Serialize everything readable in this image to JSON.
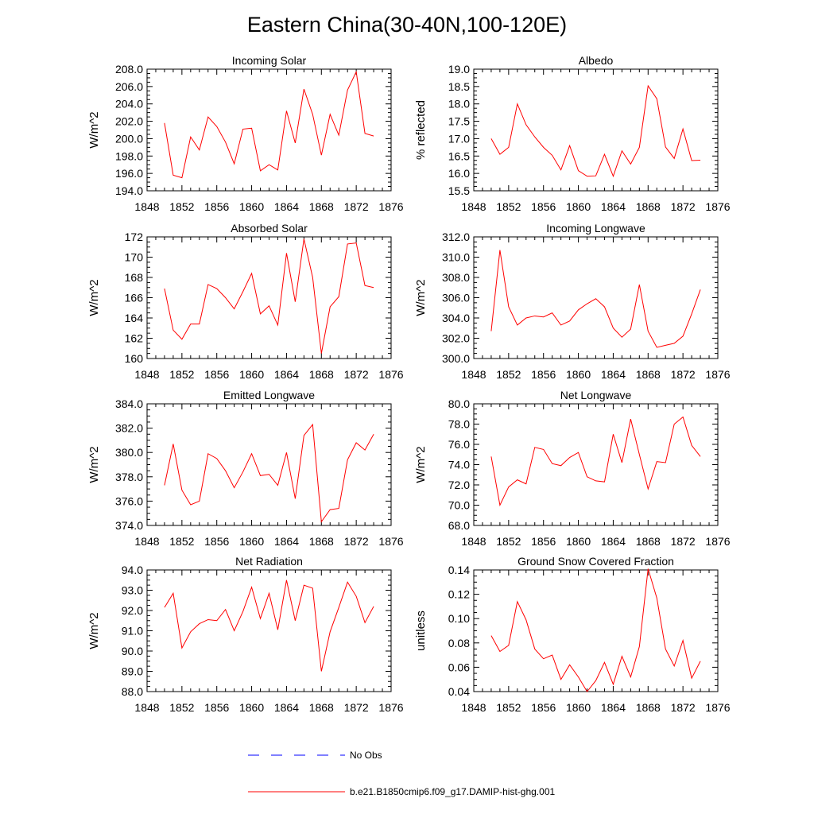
{
  "title": "Eastern China(30-40N,100-120E)",
  "years": [
    1850,
    1851,
    1852,
    1853,
    1854,
    1855,
    1856,
    1857,
    1858,
    1859,
    1860,
    1861,
    1862,
    1863,
    1864,
    1865,
    1866,
    1867,
    1868,
    1869,
    1870,
    1871,
    1872,
    1873,
    1874
  ],
  "x_axis": {
    "min": 1848,
    "max": 1876,
    "major": 4,
    "minor": 1,
    "tick_labels": [
      "1848",
      "1852",
      "1856",
      "1860",
      "1864",
      "1868",
      "1872",
      "1876"
    ]
  },
  "colors": {
    "model": "#ff0000",
    "obs": "#0000ff",
    "axis": "#000000"
  },
  "legend": [
    {
      "label": "No Obs",
      "style": "dashed",
      "color": "#0000ff"
    },
    {
      "label": "b.e21.B1850cmip6.f09_g17.DAMIP-hist-ghg.001",
      "style": "solid",
      "color": "#ff0000"
    }
  ],
  "chart_data": [
    {
      "type": "line",
      "title": "Incoming Solar",
      "ylabel": "W/m^2",
      "ylim": [
        194,
        208
      ],
      "y_major": 2,
      "y_minor": 0.5,
      "tick_labels": [
        "194.0",
        "196.0",
        "198.0",
        "200.0",
        "202.0",
        "204.0",
        "206.0",
        "208.0"
      ],
      "series": [
        {
          "values": [
            201.8,
            195.8,
            195.5,
            200.2,
            198.7,
            202.5,
            201.4,
            199.6,
            197.1,
            201.1,
            201.2,
            196.3,
            197.0,
            196.4,
            203.2,
            199.5,
            205.7,
            202.8,
            198.1,
            202.8,
            200.4,
            205.6,
            207.7,
            200.6,
            200.3
          ]
        }
      ]
    },
    {
      "type": "line",
      "title": "Albedo",
      "ylabel": "% reflected",
      "ylim": [
        15.5,
        19.0
      ],
      "y_major": 0.5,
      "y_minor": 0.125,
      "tick_labels": [
        "15.5",
        "16.0",
        "16.5",
        "17.0",
        "17.5",
        "18.0",
        "18.5",
        "19.0"
      ],
      "series": [
        {
          "values": [
            17.0,
            16.55,
            16.75,
            18.0,
            17.4,
            17.05,
            16.75,
            16.52,
            16.1,
            16.8,
            16.08,
            15.92,
            15.93,
            16.55,
            15.92,
            16.65,
            16.27,
            16.75,
            18.52,
            18.15,
            16.76,
            16.43,
            17.28,
            16.37,
            16.38
          ]
        }
      ]
    },
    {
      "type": "line",
      "title": "Absorbed Solar",
      "ylabel": "W/m^2",
      "ylim": [
        160,
        172
      ],
      "y_major": 2,
      "y_minor": 0.5,
      "tick_labels": [
        "160",
        "162",
        "164",
        "166",
        "168",
        "170",
        "172"
      ],
      "series": [
        {
          "values": [
            166.9,
            162.8,
            161.9,
            163.4,
            163.4,
            167.3,
            166.9,
            166.0,
            164.9,
            166.6,
            168.4,
            164.4,
            165.2,
            163.3,
            170.4,
            165.6,
            171.8,
            168.0,
            160.5,
            165.1,
            166.1,
            171.3,
            171.4,
            167.2,
            167.0
          ]
        }
      ]
    },
    {
      "type": "line",
      "title": "Incoming Longwave",
      "ylabel": "W/m^2",
      "ylim": [
        300,
        312
      ],
      "y_major": 2,
      "y_minor": 0.5,
      "tick_labels": [
        "300.0",
        "302.0",
        "304.0",
        "306.0",
        "308.0",
        "310.0",
        "312.0"
      ],
      "series": [
        {
          "values": [
            302.7,
            310.7,
            305.1,
            303.3,
            304.0,
            304.2,
            304.1,
            304.5,
            303.3,
            303.7,
            304.8,
            305.4,
            305.9,
            305.1,
            303.0,
            302.1,
            302.9,
            307.3,
            302.7,
            301.1,
            301.3,
            301.5,
            302.2,
            304.4,
            306.8
          ]
        }
      ]
    },
    {
      "type": "line",
      "title": "Emitted Longwave",
      "ylabel": "W/m^2",
      "ylim": [
        374,
        384
      ],
      "y_major": 2,
      "y_minor": 0.5,
      "tick_labels": [
        "374.0",
        "376.0",
        "378.0",
        "380.0",
        "382.0",
        "384.0"
      ],
      "series": [
        {
          "values": [
            377.3,
            380.7,
            376.9,
            375.7,
            376.0,
            379.9,
            379.5,
            378.5,
            377.1,
            378.4,
            379.9,
            378.1,
            378.2,
            377.3,
            380.0,
            376.2,
            381.4,
            382.3,
            374.3,
            375.3,
            375.4,
            379.4,
            380.8,
            380.2,
            381.5
          ]
        }
      ]
    },
    {
      "type": "line",
      "title": "Net Longwave",
      "ylabel": "W/m^2",
      "ylim": [
        68,
        80
      ],
      "y_major": 2,
      "y_minor": 0.5,
      "tick_labels": [
        "68.0",
        "70.0",
        "72.0",
        "74.0",
        "76.0",
        "78.0",
        "80.0"
      ],
      "series": [
        {
          "values": [
            74.8,
            70.0,
            71.8,
            72.5,
            72.1,
            75.7,
            75.5,
            74.1,
            73.9,
            74.7,
            75.2,
            72.8,
            72.4,
            72.3,
            77.0,
            74.2,
            78.5,
            75.0,
            71.6,
            74.3,
            74.2,
            78.0,
            78.7,
            75.9,
            74.8
          ]
        }
      ]
    },
    {
      "type": "line",
      "title": "Net Radiation",
      "ylabel": "W/m^2",
      "ylim": [
        88,
        94
      ],
      "y_major": 1,
      "y_minor": 0.25,
      "tick_labels": [
        "88.0",
        "89.0",
        "90.0",
        "91.0",
        "92.0",
        "93.0",
        "94.0"
      ],
      "series": [
        {
          "values": [
            92.15,
            92.85,
            90.15,
            90.95,
            91.35,
            91.55,
            91.5,
            92.05,
            91.0,
            91.95,
            93.15,
            91.6,
            92.85,
            91.05,
            93.5,
            91.5,
            93.25,
            93.1,
            89.0,
            90.95,
            92.15,
            93.4,
            92.7,
            91.4,
            92.2
          ]
        }
      ]
    },
    {
      "type": "line",
      "title": "Ground Snow Covered Fraction",
      "ylabel": "unitless",
      "ylim": [
        0.04,
        0.14
      ],
      "y_major": 0.02,
      "y_minor": 0.005,
      "tick_labels": [
        "0.04",
        "0.06",
        "0.08",
        "0.10",
        "0.12",
        "0.14"
      ],
      "series": [
        {
          "values": [
            0.086,
            0.073,
            0.078,
            0.114,
            0.099,
            0.075,
            0.067,
            0.07,
            0.05,
            0.062,
            0.052,
            0.04,
            0.049,
            0.064,
            0.046,
            0.069,
            0.052,
            0.077,
            0.141,
            0.117,
            0.075,
            0.061,
            0.082,
            0.051,
            0.065
          ]
        }
      ]
    }
  ]
}
